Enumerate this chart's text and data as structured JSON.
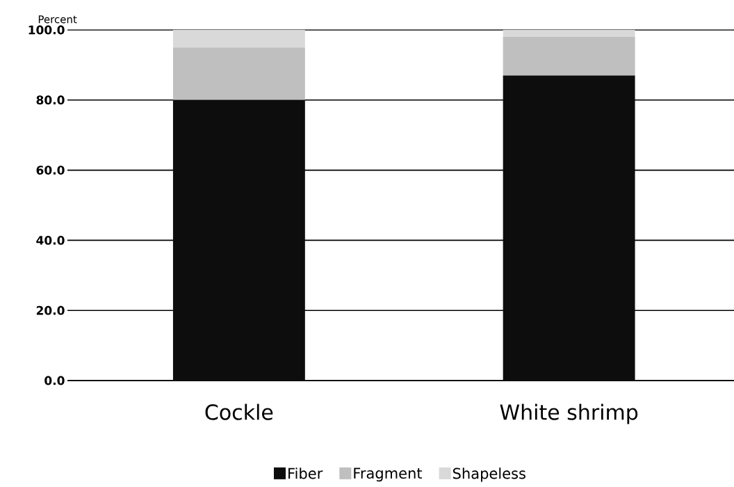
{
  "chart_data": {
    "type": "bar",
    "stacked": true,
    "ylabel": "Percent",
    "categories": [
      "Cockle",
      "White shrimp"
    ],
    "series": [
      {
        "name": "Fiber",
        "color": "#0d0d0d",
        "values": [
          80,
          87
        ]
      },
      {
        "name": "Fragment",
        "color": "#bfbfbf",
        "values": [
          15,
          11
        ]
      },
      {
        "name": "Shapeless",
        "color": "#d9d9d9",
        "values": [
          5,
          2
        ]
      }
    ],
    "ylim": [
      0,
      100
    ],
    "yticks": [
      {
        "value": 0,
        "label": "0.0"
      },
      {
        "value": 20,
        "label": "20.0"
      },
      {
        "value": 40,
        "label": "40.0"
      },
      {
        "value": 60,
        "label": "60.0"
      },
      {
        "value": 80,
        "label": "80.0"
      },
      {
        "value": 100,
        "label": "100.0"
      }
    ],
    "grid": "y",
    "legend": "bottom"
  }
}
